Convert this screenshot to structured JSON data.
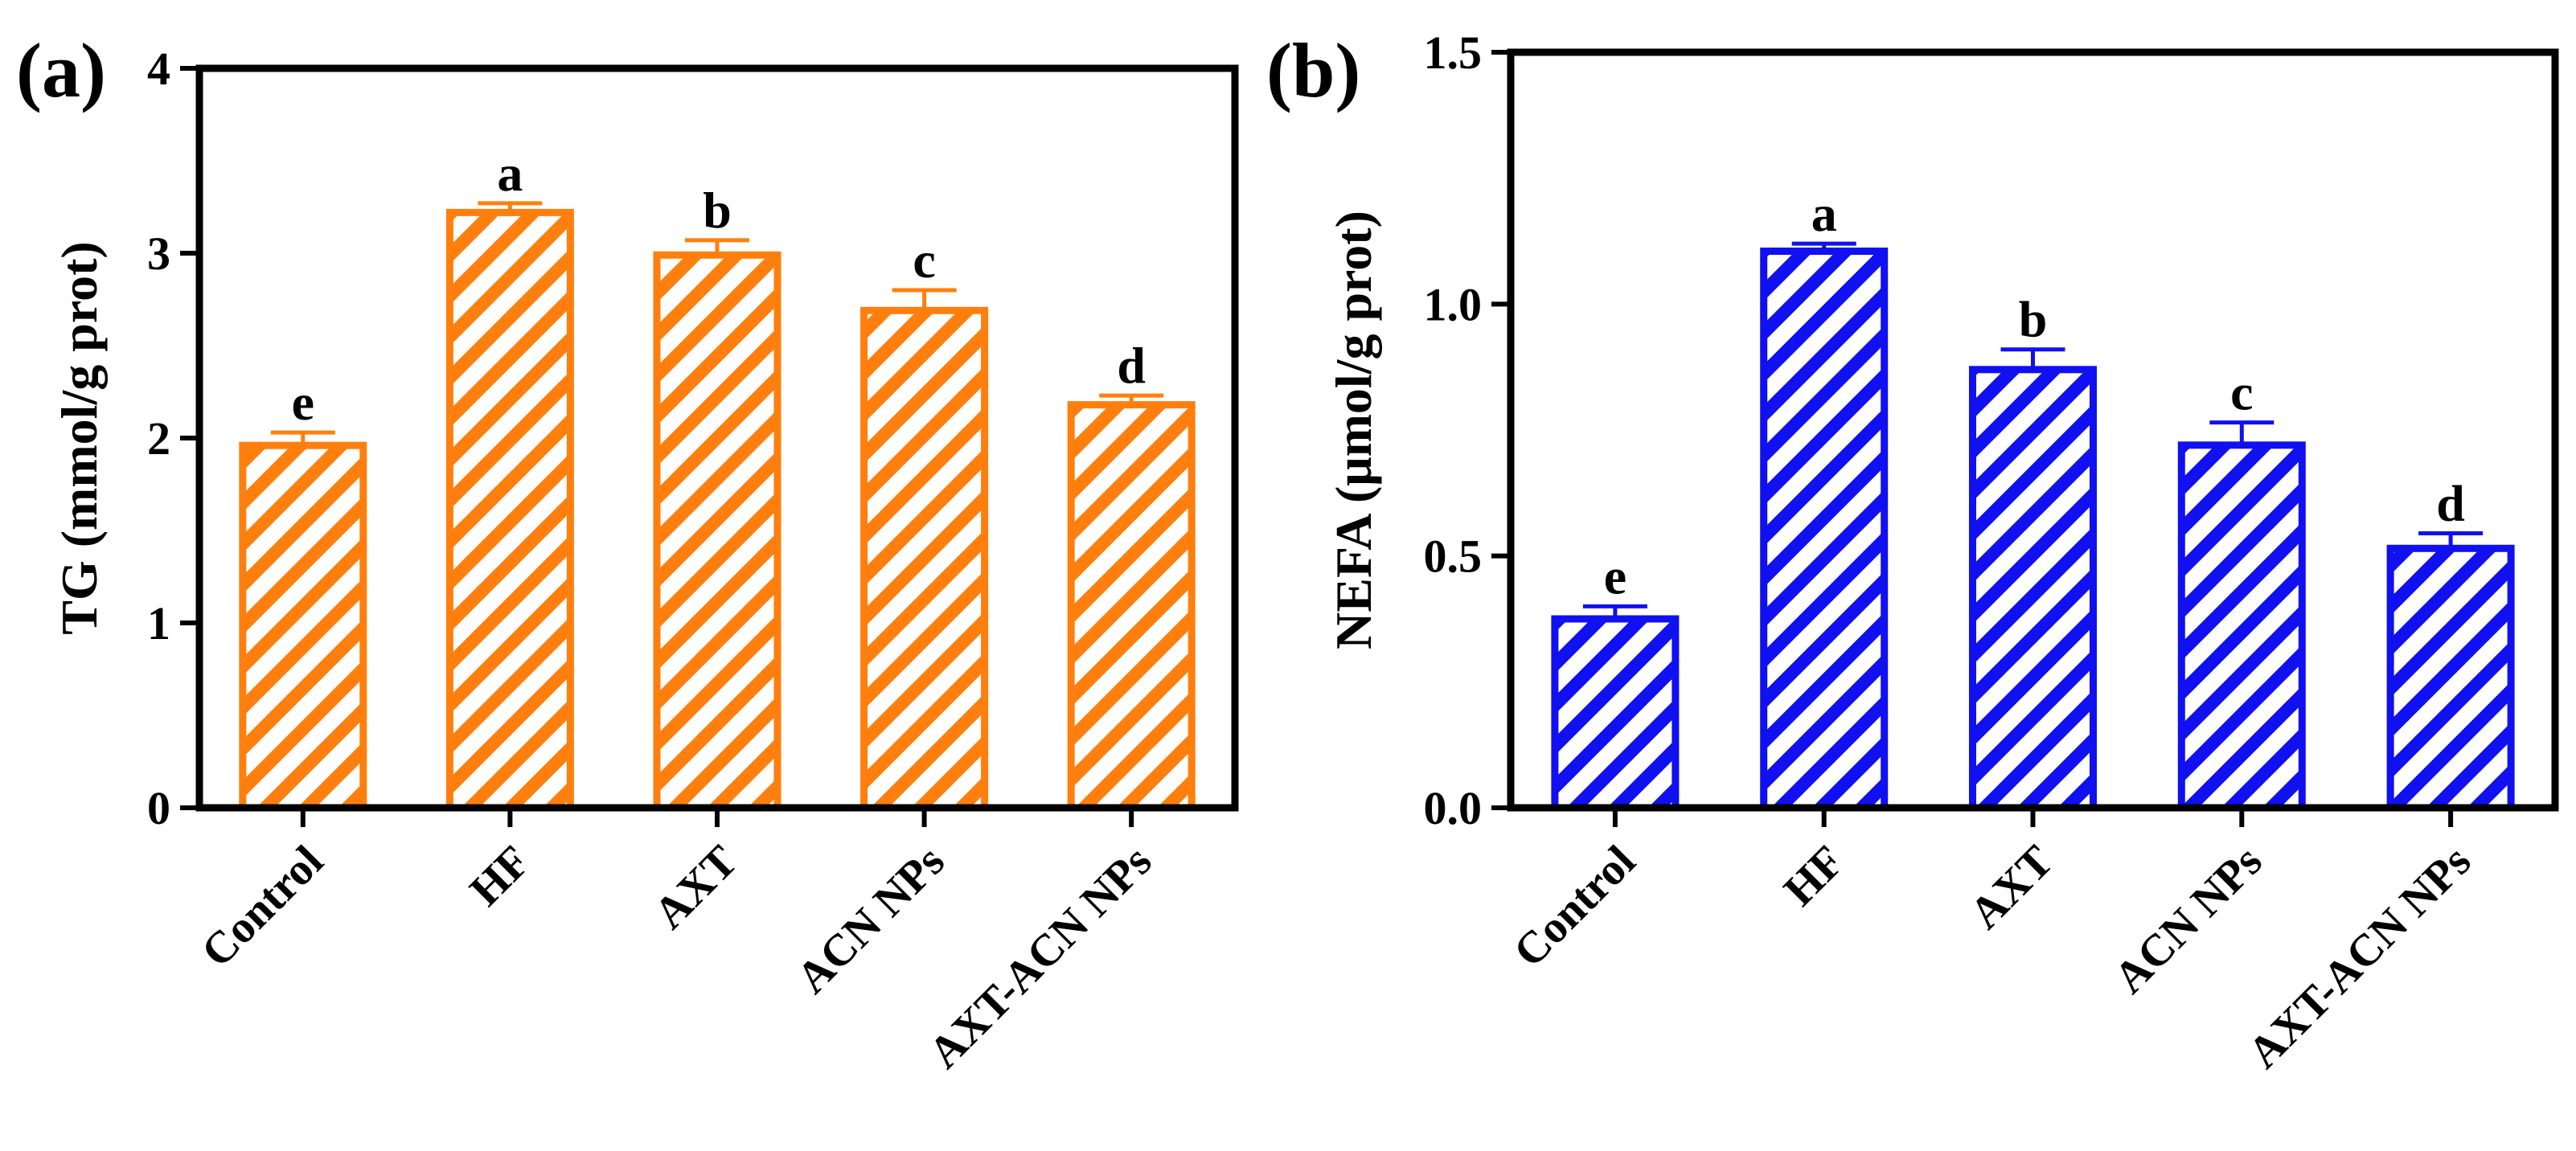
{
  "chart_data": [
    {
      "type": "bar",
      "panel_label": "(a)",
      "categories": [
        "Control",
        "HF",
        "AXT",
        "ACN NPs",
        "AXT-ACN NPs"
      ],
      "values": [
        1.96,
        3.22,
        2.99,
        2.69,
        2.18
      ],
      "errors": [
        0.07,
        0.05,
        0.08,
        0.11,
        0.05
      ],
      "letters": [
        "e",
        "a",
        "b",
        "c",
        "d"
      ],
      "title": "",
      "xlabel": "",
      "ylabel": "TG  (mmol/g prot)",
      "ylim": [
        0,
        4
      ],
      "yticks": [
        0,
        1,
        2,
        3,
        4
      ],
      "ytick_labels": [
        "0",
        "1",
        "2",
        "3",
        "4"
      ],
      "color": "#ff7f0e",
      "pattern": "diagonal-hatch",
      "grid": false,
      "legend": "none"
    },
    {
      "type": "bar",
      "panel_label": "(b)",
      "categories": [
        "Control",
        "HF",
        "AXT",
        "ACN NPs",
        "AXT-ACN NPs"
      ],
      "values": [
        0.375,
        1.105,
        0.87,
        0.72,
        0.515
      ],
      "errors": [
        0.025,
        0.015,
        0.04,
        0.045,
        0.03
      ],
      "letters": [
        "e",
        "a",
        "b",
        "c",
        "d"
      ],
      "title": "",
      "xlabel": "",
      "ylabel": "NEFA  (μmol/g prot)",
      "ylim": [
        0,
        1.5
      ],
      "yticks": [
        0,
        0.5,
        1.0,
        1.5
      ],
      "ytick_labels": [
        "0.0",
        "0.5",
        "1.0",
        "1.5"
      ],
      "color": "#1010f0",
      "pattern": "diagonal-hatch",
      "grid": false,
      "legend": "none"
    }
  ]
}
